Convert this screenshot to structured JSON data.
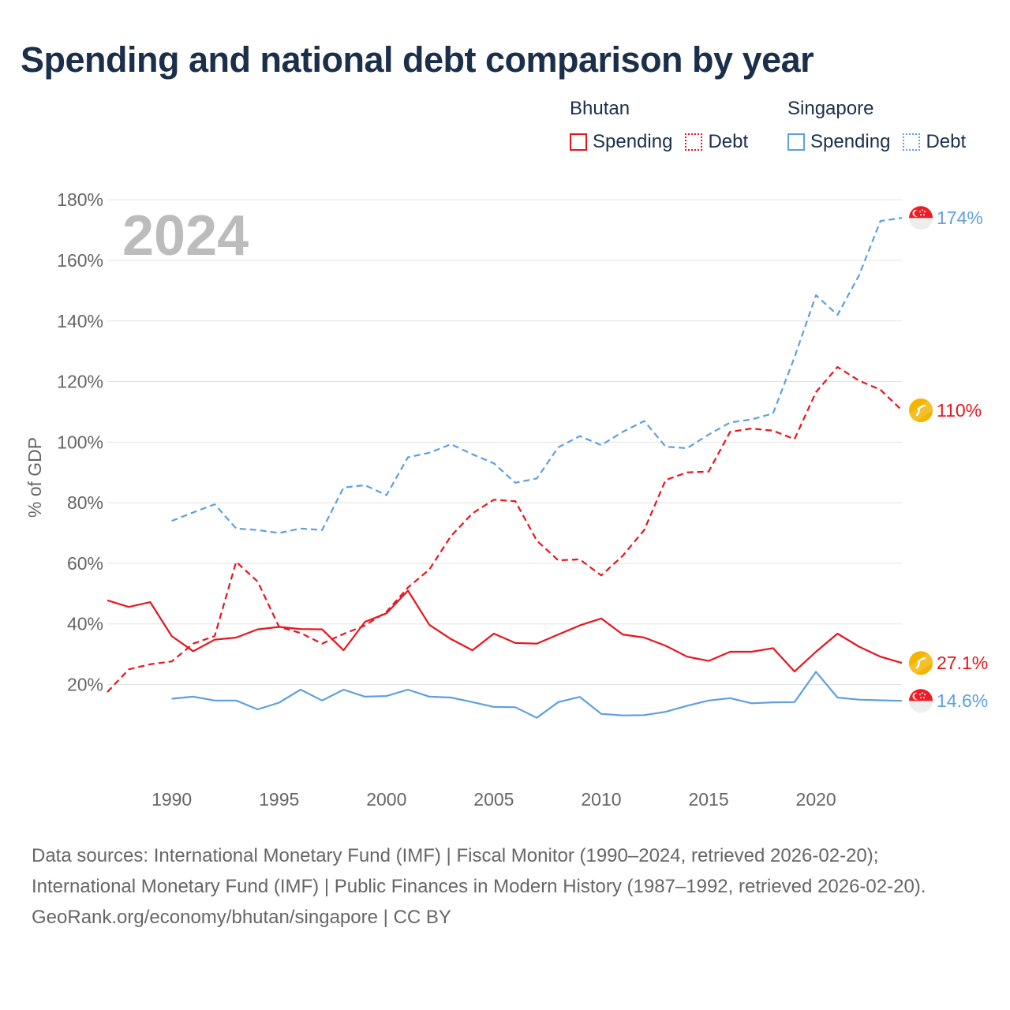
{
  "title": "Spending and national debt comparison by year",
  "legend": {
    "groups": [
      {
        "name": "Bhutan",
        "color": "#e8141c",
        "items": [
          {
            "label": "Spending",
            "style": "solid"
          },
          {
            "label": "Debt",
            "style": "dotted"
          }
        ]
      },
      {
        "name": "Singapore",
        "color": "#5f9fdf",
        "items": [
          {
            "label": "Spending",
            "style": "solid"
          },
          {
            "label": "Debt",
            "style": "dotted"
          }
        ]
      }
    ]
  },
  "chart_data": {
    "type": "line",
    "title": "Spending and national debt comparison by year",
    "xlabel": "",
    "ylabel": "% of GDP",
    "year_watermark": "2024",
    "xlim": [
      1987,
      2024
    ],
    "ylim": [
      -8,
      185
    ],
    "x_ticks": [
      1990,
      1995,
      2000,
      2005,
      2010,
      2015,
      2020
    ],
    "y_ticks": [
      20,
      40,
      60,
      80,
      100,
      120,
      140,
      160,
      180
    ],
    "y_tick_labels": [
      "20%",
      "40%",
      "60%",
      "80%",
      "100%",
      "120%",
      "140%",
      "160%",
      "180%"
    ],
    "series": [
      {
        "name": "Singapore Debt",
        "country": "Singapore",
        "kind": "Debt",
        "color": "#5f9fdf",
        "dashed": true,
        "end_label": "174%",
        "flag": "singapore-flag-icon",
        "x": [
          1990,
          1991,
          1992,
          1993,
          1994,
          1995,
          1996,
          1997,
          1998,
          1999,
          2000,
          2001,
          2002,
          2003,
          2004,
          2005,
          2006,
          2007,
          2008,
          2009,
          2010,
          2011,
          2012,
          2013,
          2014,
          2015,
          2016,
          2017,
          2018,
          2019,
          2020,
          2021,
          2022,
          2023,
          2024
        ],
        "y": [
          74,
          76.8,
          79.5,
          71.5,
          71,
          70,
          71.5,
          71,
          85,
          85.8,
          82.5,
          95,
          96.5,
          99.3,
          96,
          93,
          86.6,
          88,
          98.3,
          102,
          99,
          103.4,
          107,
          98.5,
          98,
          102.5,
          106.5,
          107.5,
          109.5,
          128,
          148.5,
          142,
          155,
          173,
          174
        ]
      },
      {
        "name": "Bhutan Debt",
        "country": "Bhutan",
        "kind": "Debt",
        "color": "#e8141c",
        "dashed": true,
        "end_label": "110%",
        "flag": "bhutan-flag-icon",
        "x": [
          1987,
          1988,
          1989,
          1990,
          1991,
          1992,
          1993,
          1994,
          1995,
          1996,
          1997,
          1998,
          1999,
          2000,
          2001,
          2002,
          2003,
          2004,
          2005,
          2006,
          2007,
          2008,
          2009,
          2010,
          2011,
          2012,
          2013,
          2014,
          2015,
          2016,
          2017,
          2018,
          2019,
          2020,
          2021,
          2022,
          2023,
          2024
        ],
        "y": [
          17.5,
          25,
          26.7,
          27.6,
          33.5,
          36,
          60.5,
          54,
          39,
          37,
          33.5,
          36.7,
          39.5,
          44,
          52,
          58,
          69,
          76.5,
          81,
          80.5,
          67.5,
          61,
          61.3,
          56,
          62.5,
          71,
          87.5,
          90,
          90.3,
          103.4,
          104.5,
          103.8,
          101,
          116.5,
          124.8,
          120.3,
          117.3,
          110.5
        ]
      },
      {
        "name": "Bhutan Spending",
        "country": "Bhutan",
        "kind": "Spending",
        "color": "#e8141c",
        "dashed": false,
        "end_label": "27.1%",
        "flag": "bhutan-flag-icon",
        "x": [
          1987,
          1988,
          1989,
          1990,
          1991,
          1992,
          1993,
          1994,
          1995,
          1996,
          1997,
          1998,
          1999,
          2000,
          2001,
          2002,
          2003,
          2004,
          2005,
          2006,
          2007,
          2008,
          2009,
          2010,
          2011,
          2012,
          2013,
          2014,
          2015,
          2016,
          2017,
          2018,
          2019,
          2020,
          2021,
          2022,
          2023,
          2024
        ],
        "y": [
          47.8,
          45.6,
          47.2,
          36,
          31,
          34.8,
          35.5,
          38.2,
          39,
          38.3,
          38.2,
          31.3,
          40.7,
          43.5,
          51,
          39.7,
          35,
          31.3,
          36.8,
          33.7,
          33.5,
          36.5,
          39.5,
          41.8,
          36.5,
          35.5,
          32.8,
          29.2,
          27.8,
          30.8,
          30.8,
          32,
          24.3,
          30.8,
          36.8,
          32.5,
          29.2,
          27.1
        ]
      },
      {
        "name": "Singapore Spending",
        "country": "Singapore",
        "kind": "Spending",
        "color": "#5f9fdf",
        "dashed": false,
        "end_label": "14.6%",
        "flag": "singapore-flag-icon",
        "x": [
          1990,
          1991,
          1992,
          1993,
          1994,
          1995,
          1996,
          1997,
          1998,
          1999,
          2000,
          2001,
          2002,
          2003,
          2004,
          2005,
          2006,
          2007,
          2008,
          2009,
          2010,
          2011,
          2012,
          2013,
          2014,
          2015,
          2016,
          2017,
          2018,
          2019,
          2020,
          2021,
          2022,
          2023,
          2024
        ],
        "y": [
          15.3,
          16,
          14.7,
          14.7,
          11.8,
          14,
          18.3,
          14.7,
          18.3,
          16,
          16.2,
          18.3,
          16,
          15.7,
          14.2,
          12.6,
          12.5,
          9,
          14.2,
          15.9,
          10.3,
          9.8,
          9.9,
          11,
          13,
          14.7,
          15.5,
          13.8,
          14.1,
          14.2,
          24.2,
          15.7,
          15,
          14.8,
          14.6
        ]
      }
    ]
  },
  "footer": {
    "sources": "Data sources: International Monetary Fund (IMF) | Fiscal Monitor (1990–2024, retrieved 2026-02-20); International Monetary Fund (IMF) | Public Finances in Modern History (1987–1992, retrieved 2026-02-20).",
    "credit": "GeoRank.org/economy/bhutan/singapore | CC BY"
  }
}
